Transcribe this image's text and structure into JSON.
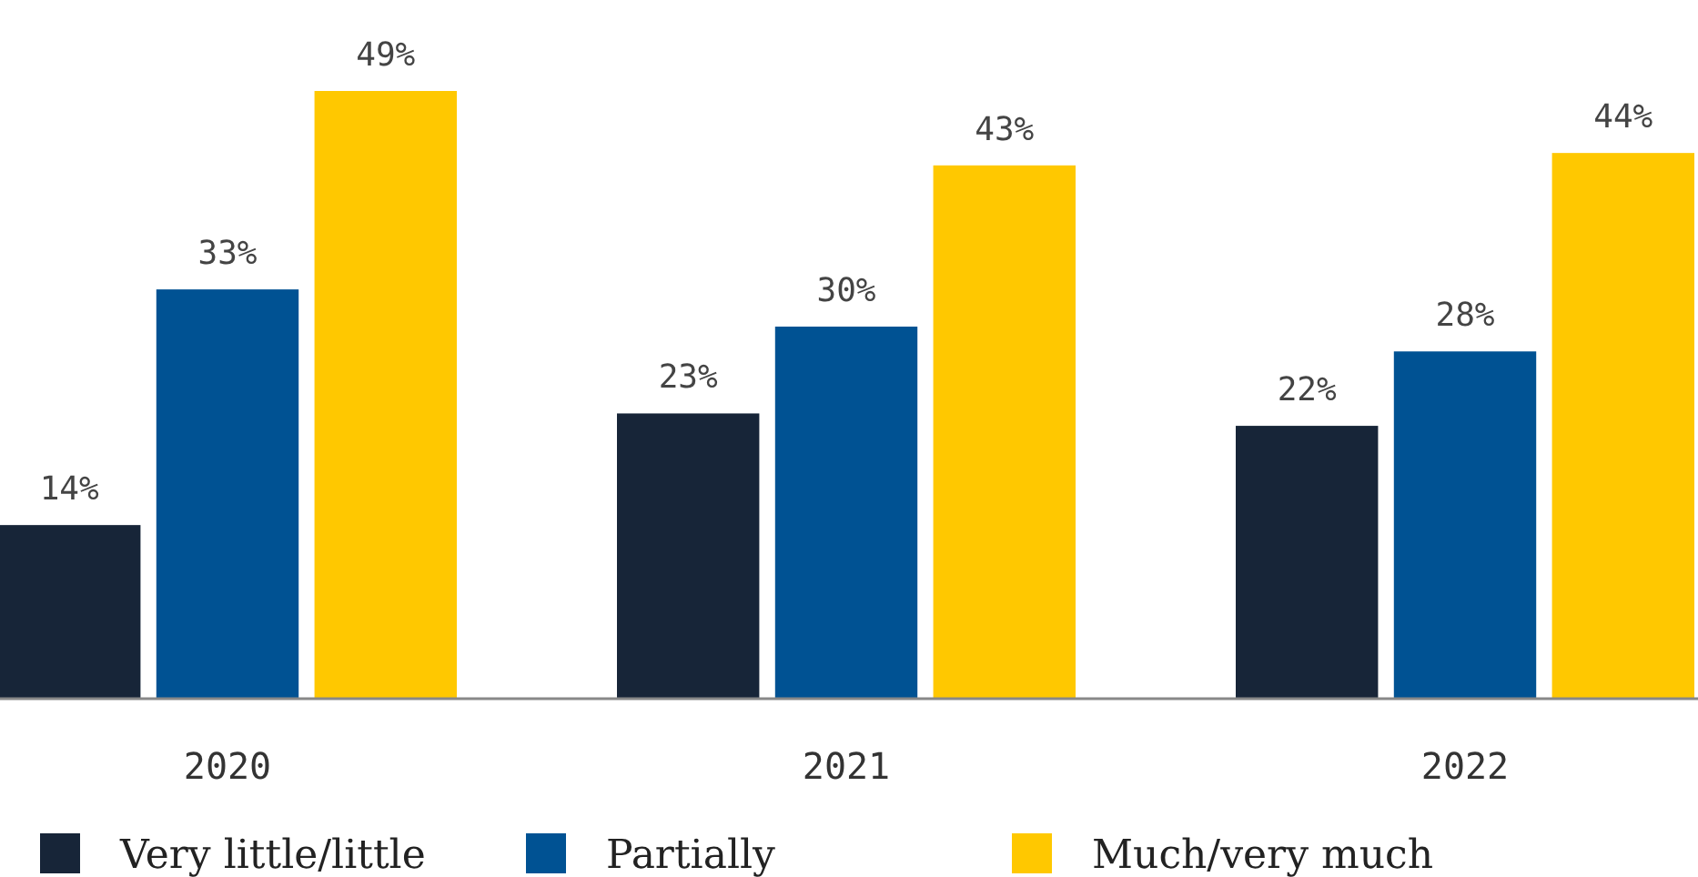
{
  "chart_data": {
    "type": "bar",
    "categories": [
      "2020",
      "2021",
      "2022"
    ],
    "legend": "bottom",
    "series": [
      {
        "name": "Very little/little",
        "color": "#172538",
        "values": [
          14,
          23,
          22
        ],
        "value_labels": [
          "14%",
          "23%",
          "22%"
        ]
      },
      {
        "name": "Partially",
        "color": "#005293",
        "values": [
          33,
          30,
          28
        ],
        "value_labels": [
          "33%",
          "30%",
          "28%"
        ]
      },
      {
        "name": "Much/very much",
        "color": "#ffc800",
        "values": [
          49,
          43,
          44
        ],
        "value_labels": [
          "49%",
          "43%",
          "44%"
        ]
      }
    ]
  }
}
